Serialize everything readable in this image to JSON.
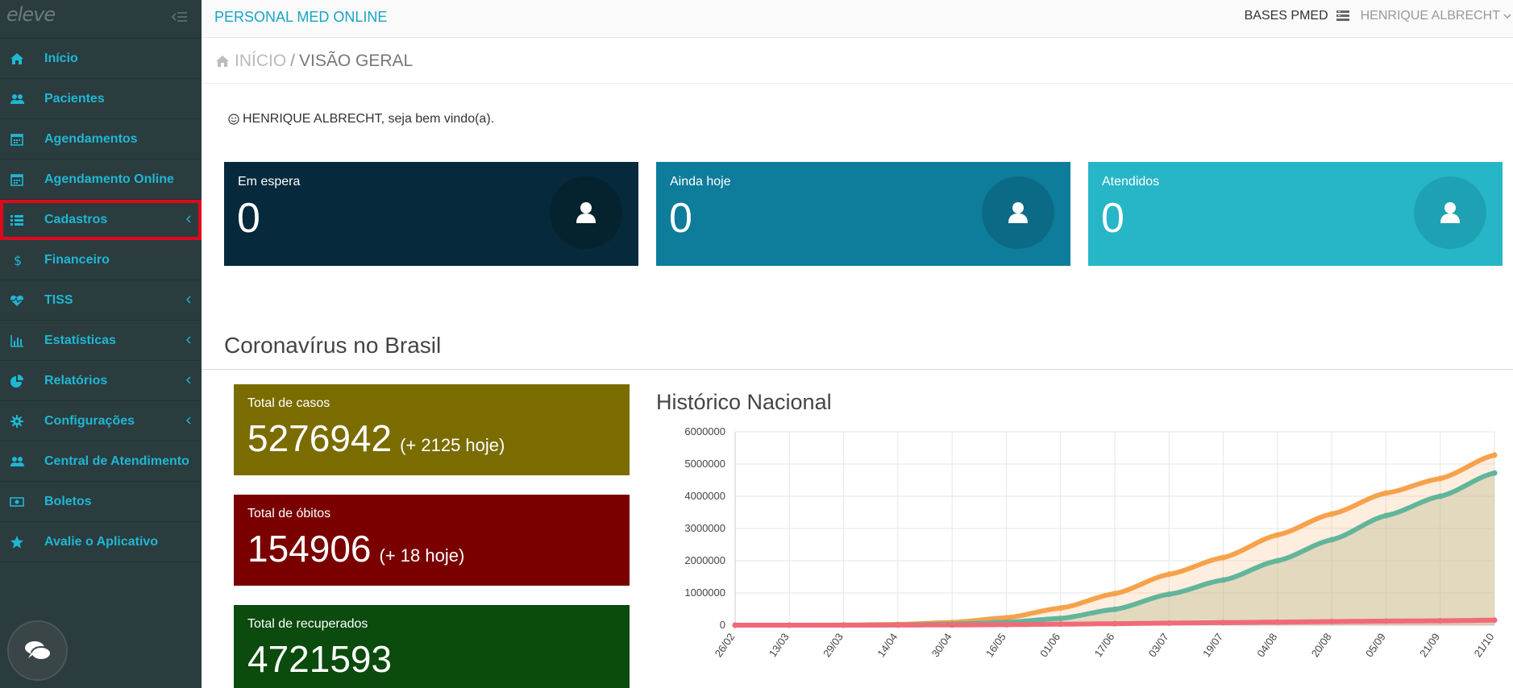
{
  "sidebar": {
    "logo": "eleve",
    "items": [
      {
        "label": "Início",
        "icon": "home-icon",
        "chevron": false
      },
      {
        "label": "Pacientes",
        "icon": "users-icon",
        "chevron": false
      },
      {
        "label": "Agendamentos",
        "icon": "calendar-icon",
        "chevron": false
      },
      {
        "label": "Agendamento Online",
        "icon": "calendar-icon",
        "chevron": false
      },
      {
        "label": "Cadastros",
        "icon": "list-icon",
        "chevron": true,
        "active": true
      },
      {
        "label": "Financeiro",
        "icon": "dollar-icon",
        "chevron": false
      },
      {
        "label": "TISS",
        "icon": "heartbeat-icon",
        "chevron": true
      },
      {
        "label": "Estatísticas",
        "icon": "bar-chart-icon",
        "chevron": true
      },
      {
        "label": "Relatórios",
        "icon": "pie-chart-icon",
        "chevron": true
      },
      {
        "label": "Configurações",
        "icon": "gear-icon",
        "chevron": true
      },
      {
        "label": "Central de Atendimento",
        "icon": "users-icon",
        "chevron": false
      },
      {
        "label": "Boletos",
        "icon": "money-icon",
        "chevron": false
      },
      {
        "label": "Avalie o Aplicativo",
        "icon": "star-icon",
        "chevron": false
      }
    ]
  },
  "topbar": {
    "brand": "PERSONAL MED ONLINE",
    "bases": "BASES PMED",
    "user": "HENRIQUE ALBRECHT"
  },
  "breadcrumb": {
    "home": "INÍCIO",
    "separator": "/",
    "current": "VISÃO GERAL"
  },
  "welcome": "HENRIQUE ALBRECHT, seja bem vindo(a).",
  "stats": [
    {
      "title": "Em espera",
      "value": "0",
      "color": "#06293c",
      "circle": "#05222f"
    },
    {
      "title": "Ainda hoje",
      "value": "0",
      "color": "#0e7c9b",
      "circle": "#0b6b86"
    },
    {
      "title": "Atendidos",
      "value": "0",
      "color": "#27b6c8",
      "circle": "#1ea2b3"
    }
  ],
  "covid": {
    "title": "Coronavírus no Brasil",
    "cases": {
      "title": "Total de casos",
      "value": "5276942",
      "delta": "(+ 2125 hoje)",
      "color": "#7b6c00"
    },
    "deaths": {
      "title": "Total de óbitos",
      "value": "154906",
      "delta": "(+ 18 hoje)",
      "color": "#7a0000"
    },
    "recovered": {
      "title": "Total de recuperados",
      "value": "4721593",
      "color": "#0b4b0d"
    }
  },
  "chart_data": {
    "type": "line",
    "title": "Histórico Nacional",
    "x_ticks": [
      "26/02",
      "13/03",
      "29/03",
      "14/04",
      "30/04",
      "16/05",
      "01/06",
      "17/06",
      "03/07",
      "19/07",
      "04/08",
      "20/08",
      "05/09",
      "21/09",
      "21/10"
    ],
    "y_ticks": [
      "6000000",
      "5000000",
      "4000000",
      "3000000",
      "2000000",
      "1000000",
      "0"
    ],
    "ylim": [
      0,
      6000000
    ],
    "grid": true,
    "colors": {
      "cases": "#f7a24b",
      "recovered": "#62b59b",
      "deaths": "#f06b78"
    },
    "x": [
      "26/02",
      "13/03",
      "29/03",
      "14/04",
      "30/04",
      "16/05",
      "01/06",
      "17/06",
      "03/07",
      "19/07",
      "04/08",
      "20/08",
      "05/09",
      "21/09",
      "21/10"
    ],
    "series": [
      {
        "key": "cases",
        "values": [
          0,
          0,
          4000,
          25000,
          85000,
          230000,
          530000,
          980000,
          1580000,
          2100000,
          2800000,
          3450000,
          4100000,
          4550000,
          5276942
        ]
      },
      {
        "key": "recovered",
        "values": [
          0,
          0,
          0,
          10000,
          35000,
          90000,
          210000,
          490000,
          960000,
          1400000,
          2000000,
          2650000,
          3400000,
          4000000,
          4721593
        ]
      },
      {
        "key": "deaths",
        "values": [
          0,
          0,
          100,
          1500,
          6000,
          15000,
          30000,
          46000,
          64000,
          80000,
          95000,
          112000,
          126000,
          136000,
          154906
        ]
      }
    ]
  }
}
